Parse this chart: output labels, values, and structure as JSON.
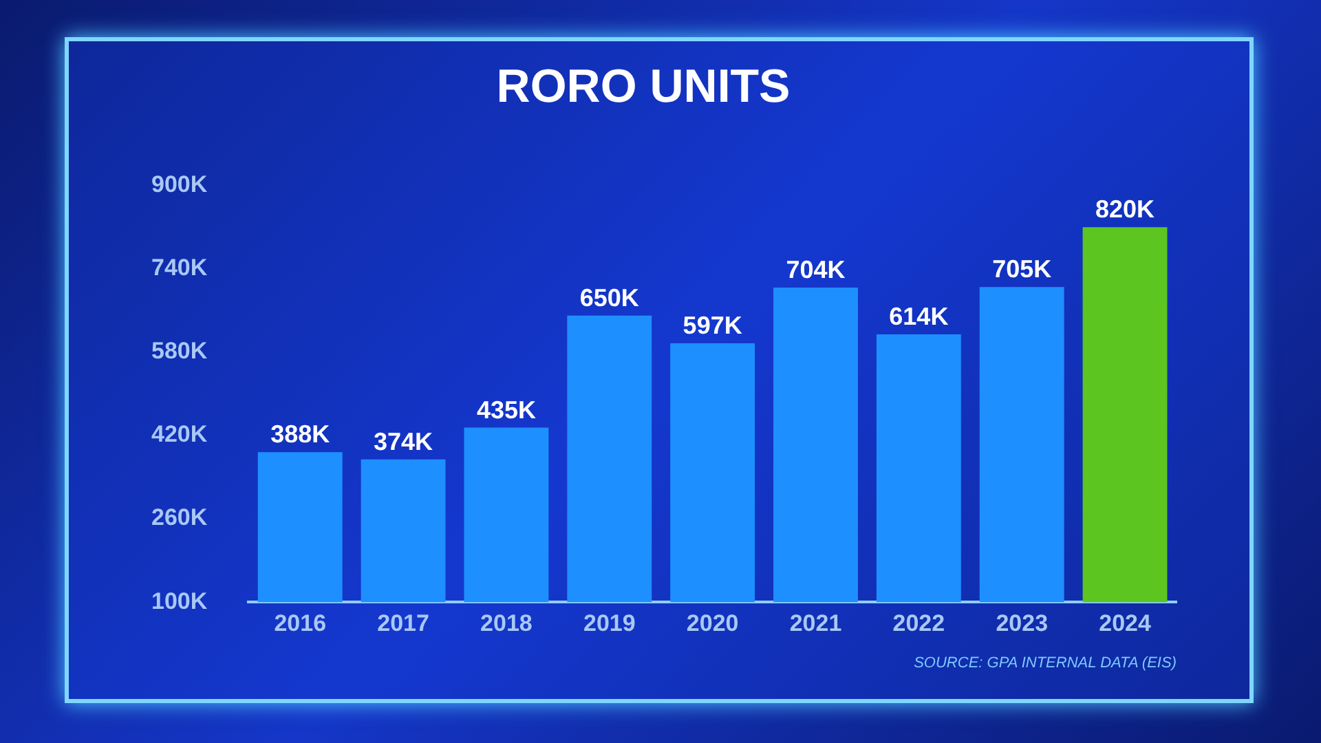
{
  "chart_data": {
    "type": "bar",
    "title": "RORO UNITS",
    "categories": [
      "2016",
      "2017",
      "2018",
      "2019",
      "2020",
      "2021",
      "2022",
      "2023",
      "2024"
    ],
    "values": [
      388000,
      374000,
      435000,
      650000,
      597000,
      704000,
      614000,
      705000,
      820000
    ],
    "value_labels": [
      "388K",
      "374K",
      "435K",
      "650K",
      "597K",
      "704K",
      "614K",
      "705K",
      "820K"
    ],
    "colors": [
      "#1e8fff",
      "#1e8fff",
      "#1e8fff",
      "#1e8fff",
      "#1e8fff",
      "#1e8fff",
      "#1e8fff",
      "#1e8fff",
      "#5cc520"
    ],
    "ylim": [
      100000,
      900000
    ],
    "yticks": [
      {
        "value": 100000,
        "label": "100K"
      },
      {
        "value": 260000,
        "label": "260K"
      },
      {
        "value": 420000,
        "label": "420K"
      },
      {
        "value": 580000,
        "label": "580K"
      },
      {
        "value": 740000,
        "label": "740K"
      },
      {
        "value": 900000,
        "label": "900K"
      }
    ],
    "grid": false,
    "legend": false,
    "annotations": [
      "SOURCE: GPA INTERNAL DATA (EIS)"
    ]
  }
}
